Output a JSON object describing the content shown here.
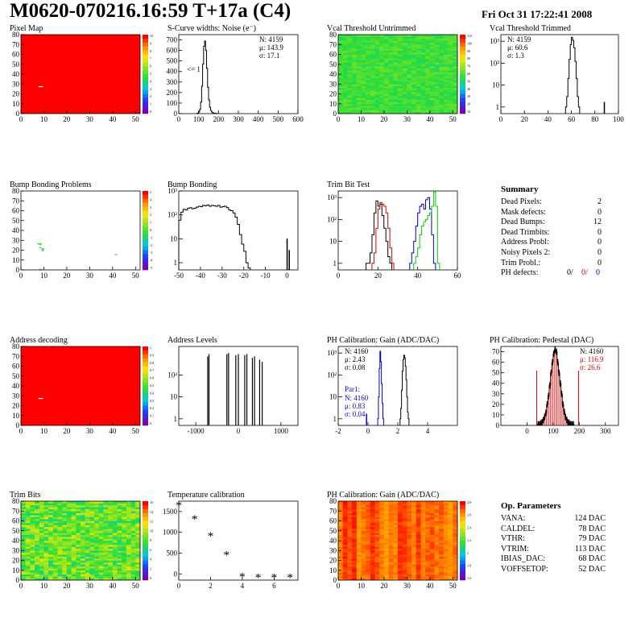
{
  "header": {
    "title": "M0620-070216.16:59 T+17a (C4)",
    "date": "Fri Oct 31 17:22:41 2008"
  },
  "colors": {
    "map_red": "#ff0000",
    "map_green": "#33dd44",
    "hist_line": "#000000",
    "blue": "#0000cc",
    "red": "#cc0000",
    "green": "#00cc00"
  },
  "summary": {
    "title": "Summary",
    "rows": [
      {
        "label": "Dead Pixels:",
        "value": "2"
      },
      {
        "label": "Mask defects:",
        "value": "0"
      },
      {
        "label": "Dead Bumps:",
        "value": "12"
      },
      {
        "label": "Dead Trimbits:",
        "value": "0"
      },
      {
        "label": "Address Probl:",
        "value": "0"
      },
      {
        "label": "Noisy Pixels 2:",
        "value": "0"
      },
      {
        "label": "Trim Probl.:",
        "value": "0"
      }
    ],
    "ph_label": "PH defects:",
    "ph_values": [
      "0/",
      "0/",
      "0"
    ]
  },
  "op_params": {
    "title": "Op. Parameters",
    "rows": [
      {
        "label": "VANA:",
        "value": "124 DAC"
      },
      {
        "label": "CALDEL:",
        "value": "78 DAC"
      },
      {
        "label": "VTHR:",
        "value": "79 DAC"
      },
      {
        "label": "VTRIM:",
        "value": "113 DAC"
      },
      {
        "label": "IBIAS_DAC:",
        "value": "68 DAC"
      },
      {
        "label": "VOFFSETOP:",
        "value": "52 DAC"
      }
    ]
  },
  "chart_data": [
    {
      "id": "pixel_map",
      "type": "heatmap",
      "title": "Pixel Map",
      "xlim": [
        0,
        52
      ],
      "ylim": [
        0,
        80
      ],
      "xticks": [
        0,
        10,
        20,
        30,
        40,
        50
      ],
      "yticks": [
        0,
        10,
        20,
        30,
        40,
        50,
        60,
        70,
        80
      ],
      "fill": "uniform",
      "value": 10,
      "z_ticks": [
        "10",
        "9",
        "8",
        "7",
        "6",
        "5",
        "4",
        "3",
        "2",
        "1",
        "0"
      ],
      "dead_pixels": [
        [
          8,
          27
        ]
      ]
    },
    {
      "id": "scurve",
      "type": "histogram",
      "title": "S-Curve widths: Noise (e⁻)",
      "xlim": [
        0,
        600
      ],
      "ylim": [
        0,
        750
      ],
      "ylog": false,
      "xticks": [
        0,
        100,
        200,
        300,
        400,
        500,
        600
      ],
      "yticks": [
        0,
        100,
        200,
        300,
        400,
        500,
        600,
        700
      ],
      "stats": [
        "N: 4159",
        "μ: 143.9",
        "σ: 17.1"
      ],
      "annotation": "<= 1",
      "series": [
        {
          "color": "#000000",
          "bin_width": 5,
          "x0": 90,
          "values": [
            2,
            5,
            15,
            40,
            110,
            260,
            470,
            640,
            690,
            600,
            430,
            250,
            130,
            60,
            30,
            15,
            8,
            5,
            3,
            2,
            1
          ]
        }
      ]
    },
    {
      "id": "vcal_untrimmed",
      "type": "heatmap",
      "title": "Vcal Threshold Untrimmed",
      "xlim": [
        0,
        52
      ],
      "ylim": [
        0,
        80
      ],
      "xticks": [
        0,
        10,
        20,
        30,
        40,
        50
      ],
      "yticks": [
        0,
        10,
        20,
        30,
        40,
        50,
        60,
        70,
        80
      ],
      "fill": "noise-green",
      "z_ticks": [
        "110",
        "100",
        "90",
        "80",
        "70",
        "60",
        "50",
        "40",
        "30",
        "20",
        "10"
      ]
    },
    {
      "id": "vcal_trimmed",
      "type": "histogram",
      "title": "Vcal Threshold Trimmed",
      "xlim": [
        0,
        100
      ],
      "ylog": true,
      "ylim_log": [
        0.5,
        2000
      ],
      "xticks": [
        0,
        20,
        40,
        60,
        80,
        100
      ],
      "ytick_labels": [
        "1",
        "10",
        "10²",
        "10³"
      ],
      "stats": [
        "N: 4159",
        "μ: 60.6",
        "σ:  1.3"
      ],
      "series": [
        {
          "color": "#000000",
          "bin_width": 1,
          "x0": 55,
          "values": [
            1,
            3,
            20,
            150,
            700,
            1500,
            1100,
            500,
            120,
            20,
            3,
            1
          ]
        }
      ],
      "outliers": [
        {
          "x": 88,
          "y": 1
        }
      ]
    },
    {
      "id": "bump_map",
      "type": "heatmap",
      "title": "Bump Bonding Problems",
      "xlim": [
        0,
        52
      ],
      "ylim": [
        0,
        80
      ],
      "xticks": [
        0,
        10,
        20,
        30,
        40,
        50
      ],
      "yticks": [
        0,
        10,
        20,
        30,
        40,
        50,
        60,
        70,
        80
      ],
      "fill": "empty",
      "z_ticks": [
        "5",
        "4",
        "3",
        "2",
        "1",
        "0",
        "-1",
        "-2",
        "-3",
        "-4",
        "-5"
      ],
      "marked_pixels": [
        [
          7,
          26
        ],
        [
          8,
          26
        ],
        [
          8,
          25
        ],
        [
          8,
          22
        ],
        [
          9,
          21
        ],
        [
          9,
          20
        ],
        [
          9,
          19
        ],
        [
          8,
          0
        ],
        [
          41,
          15
        ]
      ]
    },
    {
      "id": "bump_bonding",
      "type": "histogram",
      "title": "Bump Bonding",
      "xlim": [
        -50,
        5
      ],
      "ylog": true,
      "ylim_log": [
        0.5,
        1000
      ],
      "xticks": [
        -50,
        -40,
        -30,
        -20,
        -10,
        0
      ],
      "ytick_labels": [
        "1",
        "10",
        "10²",
        "10³"
      ],
      "series": [
        {
          "color": "#000000",
          "bin_width": 1,
          "x0": -50,
          "values": [
            60,
            130,
            170,
            160,
            190,
            200,
            180,
            190,
            210,
            230,
            220,
            250,
            240,
            260,
            230,
            250,
            240,
            230,
            250,
            210,
            220,
            230,
            200,
            160,
            150,
            120,
            80,
            40,
            15,
            6,
            3,
            1,
            0.6
          ]
        }
      ],
      "outliers": [
        {
          "x": 0,
          "y": 6
        },
        {
          "x": 1,
          "y": 2
        }
      ]
    },
    {
      "id": "trim_bit",
      "type": "histogram",
      "title": "Trim Bit Test",
      "xlim": [
        0,
        60
      ],
      "ylog": true,
      "ylim_log": [
        0.5,
        2000
      ],
      "xticks": [
        0,
        20,
        40,
        60
      ],
      "ytick_labels": [
        "1",
        "10",
        "10²",
        "10³"
      ],
      "series": [
        {
          "color": "#000000",
          "bin_width": 1,
          "x0": 14,
          "values": [
            1,
            1,
            3,
            20,
            200,
            700,
            400,
            500,
            150,
            40,
            10,
            2,
            1
          ]
        },
        {
          "color": "#cc0000",
          "bin_width": 1,
          "x0": 17,
          "values": [
            1,
            3,
            40,
            300,
            600,
            500,
            400,
            200,
            40,
            5,
            1
          ]
        },
        {
          "color": "#0000cc",
          "bin_width": 1,
          "x0": 36,
          "values": [
            1,
            3,
            10,
            50,
            200,
            400,
            500,
            300,
            800,
            1000,
            300,
            20,
            1
          ]
        },
        {
          "color": "#00cc00",
          "bin_width": 1,
          "x0": 38,
          "values": [
            1,
            2,
            5,
            20,
            50,
            80,
            100,
            150,
            200,
            400,
            1800,
            400,
            1
          ]
        }
      ]
    },
    {
      "id": "address_map",
      "type": "heatmap",
      "title": "Address decoding",
      "xlim": [
        0,
        52
      ],
      "ylim": [
        0,
        80
      ],
      "xticks": [
        0,
        10,
        20,
        30,
        40,
        50
      ],
      "yticks": [
        0,
        10,
        20,
        30,
        40,
        50,
        60,
        70,
        80
      ],
      "fill": "uniform",
      "value": 1,
      "z_ticks": [
        "1",
        "0.9",
        "0.8",
        "0.7",
        "0.6",
        "0.5",
        "0.4",
        "0.3",
        "0.2",
        "0.1",
        "0"
      ],
      "dead_pixels": [
        [
          8,
          27
        ]
      ]
    },
    {
      "id": "address_levels",
      "type": "histogram",
      "title": "Address Levels",
      "xlim": [
        -1400,
        1400
      ],
      "ylog": true,
      "ylim_log": [
        0.5,
        2000
      ],
      "xticks": [
        -1000,
        0,
        1000
      ],
      "ytick_labels": [
        "1",
        "10",
        "10²"
      ],
      "spikes": [
        {
          "x": -720,
          "y": 700
        },
        {
          "x": -690,
          "y": 900
        },
        {
          "x": -270,
          "y": 900
        },
        {
          "x": -230,
          "y": 1000
        },
        {
          "x": -60,
          "y": 800
        },
        {
          "x": 0,
          "y": 900
        },
        {
          "x": 150,
          "y": 800
        },
        {
          "x": 200,
          "y": 900
        },
        {
          "x": 330,
          "y": 600
        },
        {
          "x": 380,
          "y": 700
        },
        {
          "x": 500,
          "y": 500
        },
        {
          "x": 560,
          "y": 400
        }
      ]
    },
    {
      "id": "ph_gain",
      "type": "histogram",
      "title": "PH Calibration: Gain (ADC/DAC)",
      "xlim": [
        -2,
        6
      ],
      "ylog": true,
      "ylim_log": [
        0.5,
        2000
      ],
      "xticks": [
        -2,
        0,
        2,
        4
      ],
      "ytick_labels": [
        "1",
        "10",
        "10²",
        "10³"
      ],
      "stats": [
        "N: 4160",
        "μ: 2.43",
        "σ: 0.08"
      ],
      "stats2_title": "Par1:",
      "stats2": [
        "N: 4160",
        "μ: 0.83",
        "σ: 0.04"
      ],
      "series": [
        {
          "color": "#000000",
          "bin_width": 0.05,
          "x0": 2.15,
          "values": [
            1,
            3,
            20,
            150,
            500,
            800,
            600,
            250,
            60,
            10,
            2,
            1
          ]
        },
        {
          "color": "#0000cc",
          "bin_width": 0.05,
          "x0": 0.65,
          "values": [
            1,
            10,
            200,
            1200,
            400,
            40,
            5,
            1
          ]
        }
      ],
      "outliers": [
        {
          "x": -0.1,
          "y": 1,
          "color": "#0000cc"
        }
      ]
    },
    {
      "id": "ph_pedestal",
      "type": "histogram",
      "title": "PH Calibration: Pedestal (DAC)",
      "xlim": [
        -100,
        350
      ],
      "ylim": [
        0,
        75
      ],
      "ylog": false,
      "xticks": [
        0,
        100,
        200,
        300
      ],
      "yticks": [
        0,
        10,
        20,
        30,
        40,
        50,
        60,
        70
      ],
      "stats": [
        "N: 4160",
        "μ: 116.9",
        "σ: 26.6"
      ],
      "series": [
        {
          "color": "#000000",
          "bin_width": 5,
          "x0": 40,
          "values": [
            1,
            1,
            2,
            3,
            5,
            8,
            12,
            20,
            28,
            38,
            50,
            60,
            68,
            72,
            70,
            60,
            50,
            40,
            30,
            20,
            13,
            8,
            5,
            3,
            2,
            1,
            1,
            1
          ]
        }
      ],
      "marker_lines": [
        {
          "x": 37,
          "color": "#cc0000"
        },
        {
          "x": 197,
          "color": "#cc0000"
        }
      ]
    },
    {
      "id": "trim_bits",
      "type": "heatmap",
      "title": "Trim Bits",
      "xlim": [
        0,
        52
      ],
      "ylim": [
        0,
        80
      ],
      "xticks": [
        0,
        10,
        20,
        30,
        40,
        50
      ],
      "yticks": [
        0,
        10,
        20,
        30,
        40,
        50,
        60,
        70,
        80
      ],
      "fill": "noise-mixed",
      "z_ticks": [
        "16",
        "14",
        "12",
        "10",
        "8",
        "6",
        "4",
        "2",
        "0"
      ]
    },
    {
      "id": "temperature",
      "type": "scatter",
      "title": "Temperature calibration",
      "xlim": [
        0,
        7.5
      ],
      "ylim": [
        -150,
        1750
      ],
      "xticks": [
        0,
        2,
        4,
        6
      ],
      "yticks": [
        0,
        500,
        1000,
        1500
      ],
      "x": [
        0,
        1,
        2,
        3,
        4,
        5,
        6,
        7
      ],
      "y": [
        1650,
        1320,
        920,
        460,
        -60,
        -80,
        -80,
        -80
      ]
    },
    {
      "id": "ph_gain_map",
      "type": "heatmap",
      "title": "PH Calibration: Gain (ADC/DAC)",
      "xlim": [
        0,
        52
      ],
      "ylim": [
        0,
        80
      ],
      "xticks": [
        0,
        10,
        20,
        30,
        40,
        50
      ],
      "yticks": [
        0,
        10,
        20,
        30,
        40,
        50,
        60,
        70,
        80
      ],
      "fill": "noise-orange",
      "z_ticks": [
        "2.8",
        "2.6",
        "2.4",
        "2.2",
        "2",
        "1.8",
        "1.6"
      ]
    }
  ]
}
